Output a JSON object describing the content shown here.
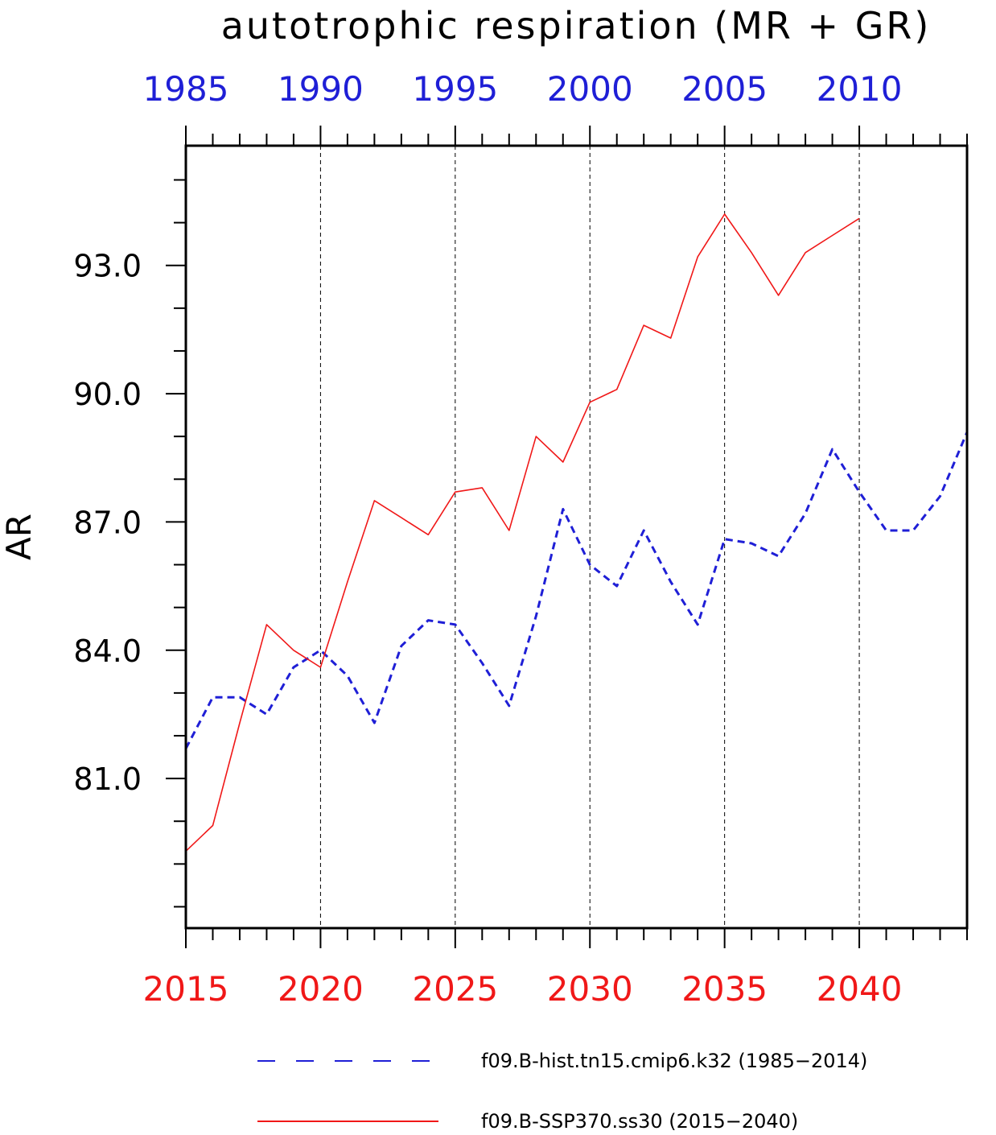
{
  "chart_data": {
    "type": "line",
    "title": "autotrophic respiration (MR + GR)",
    "ylabel": "AR",
    "xlabel": "",
    "ylim": [
      77.5,
      95.8
    ],
    "yticks": [
      81.0,
      84.0,
      87.0,
      90.0,
      93.0
    ],
    "ytick_labels": [
      "81.0",
      "84.0",
      "87.0",
      "90.0",
      "93.0"
    ],
    "x_bottom": {
      "range": [
        2015,
        2044
      ],
      "ticks": [
        "2015",
        "2020",
        "2025",
        "2030",
        "2035",
        "2040"
      ],
      "color": "#f01818"
    },
    "x_top": {
      "range": [
        1985,
        2014
      ],
      "ticks": [
        "1985",
        "1990",
        "1995",
        "2000",
        "2005",
        "2010"
      ],
      "color": "#1f1fd6"
    },
    "grid": "vertical dashed at labeled ticks",
    "legend_position": "bottom",
    "series": [
      {
        "name": "f09.B-hist.tn15.cmip6.k32 (1985−2014)",
        "axis": "top",
        "style": "dashed",
        "color": "#1f1fd6",
        "x": [
          1985,
          1986,
          1987,
          1988,
          1989,
          1990,
          1991,
          1992,
          1993,
          1994,
          1995,
          1996,
          1997,
          1998,
          1999,
          2000,
          2001,
          2002,
          2003,
          2004,
          2005,
          2006,
          2007,
          2008,
          2009,
          2010,
          2011,
          2012,
          2013,
          2014
        ],
        "values": [
          81.7,
          82.9,
          82.9,
          82.5,
          83.6,
          84.0,
          83.4,
          82.3,
          84.1,
          84.7,
          84.6,
          83.7,
          82.7,
          84.8,
          87.3,
          86.0,
          85.5,
          86.8,
          85.6,
          84.6,
          86.6,
          86.5,
          86.2,
          87.2,
          88.7,
          87.7,
          86.8,
          86.8,
          87.6,
          89.1
        ]
      },
      {
        "name": "f09.B-SSP370.ss30 (2015−2040)",
        "axis": "bottom",
        "style": "solid",
        "color": "#f01818",
        "x": [
          2015,
          2016,
          2017,
          2018,
          2019,
          2020,
          2021,
          2022,
          2023,
          2024,
          2025,
          2026,
          2027,
          2028,
          2029,
          2030,
          2031,
          2032,
          2033,
          2034,
          2035,
          2036,
          2037,
          2038,
          2039,
          2040
        ],
        "values": [
          79.3,
          79.9,
          82.3,
          84.6,
          84.0,
          83.6,
          85.6,
          87.5,
          87.1,
          86.7,
          87.7,
          87.8,
          86.8,
          89.0,
          88.4,
          89.8,
          90.1,
          91.6,
          91.3,
          93.2,
          94.2,
          93.3,
          92.3,
          93.3,
          93.7,
          94.1
        ]
      }
    ]
  }
}
